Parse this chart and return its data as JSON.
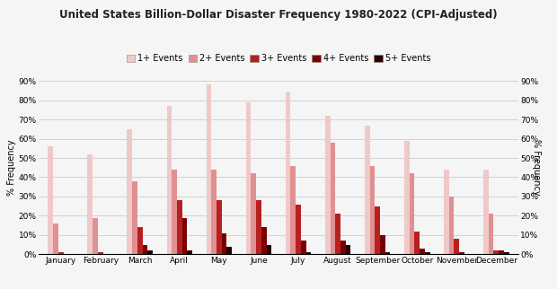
{
  "title": "United States Billion-Dollar Disaster Frequency 1980-2022 (CPI-Adjusted)",
  "months": [
    "January",
    "February",
    "March",
    "April",
    "May",
    "June",
    "July",
    "August",
    "September",
    "October",
    "November",
    "December"
  ],
  "series": {
    "1+ Events": [
      56,
      52,
      65,
      77,
      88,
      79,
      84,
      72,
      67,
      59,
      44,
      44
    ],
    "2+ Events": [
      16,
      19,
      38,
      44,
      44,
      42,
      46,
      58,
      46,
      42,
      30,
      21
    ],
    "3+ Events": [
      1,
      1,
      14,
      28,
      28,
      28,
      26,
      21,
      25,
      12,
      8,
      2
    ],
    "4+ Events": [
      0,
      0,
      5,
      19,
      11,
      14,
      7,
      7,
      10,
      3,
      1,
      2
    ],
    "5+ Events": [
      0,
      0,
      2,
      2,
      4,
      5,
      1,
      5,
      1,
      1,
      0,
      1
    ]
  },
  "colors": {
    "1+ Events": "#f0c8c8",
    "2+ Events": "#e09090",
    "3+ Events": "#b82020",
    "4+ Events": "#780000",
    "5+ Events": "#2a0000"
  },
  "ylabel": "% Frequency",
  "ylim": [
    0,
    90
  ],
  "yticks": [
    0,
    10,
    20,
    30,
    40,
    50,
    60,
    70,
    80,
    90
  ],
  "background_color": "#f5f5f5",
  "grid_color": "#cccccc",
  "bar_width": 0.13,
  "title_fontsize": 8.5,
  "legend_fontsize": 7.0,
  "tick_fontsize": 6.5,
  "label_fontsize": 7.0
}
